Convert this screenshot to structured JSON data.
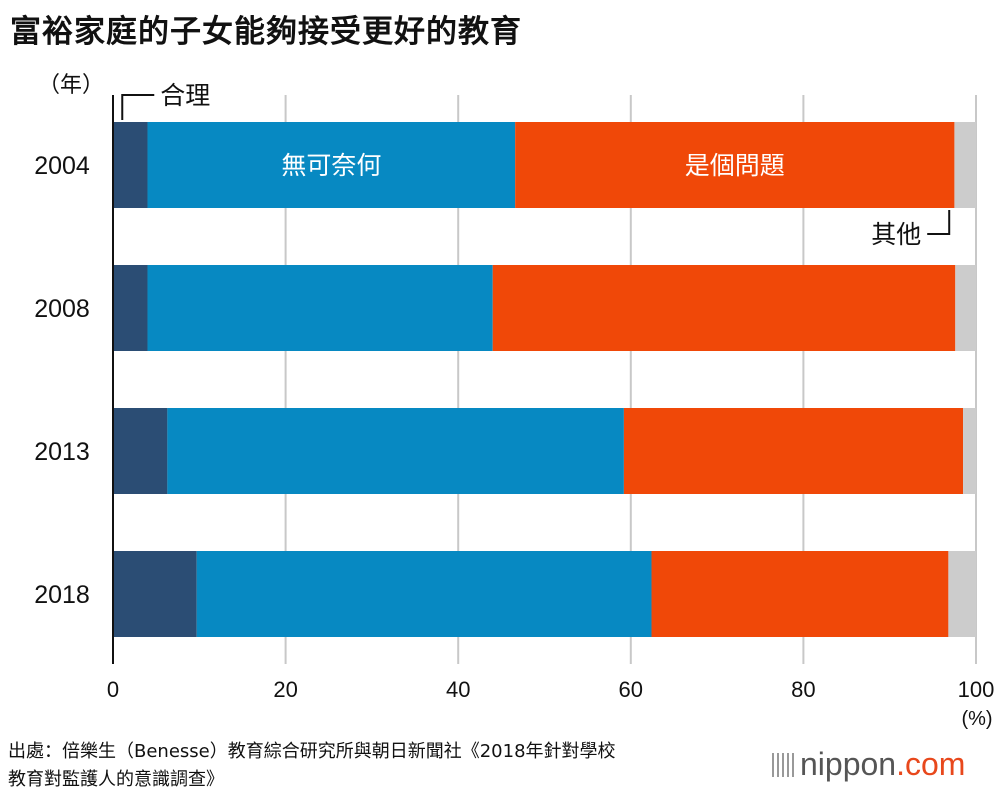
{
  "title": "富裕家庭的子女能夠接受更好的教育",
  "chart_data": {
    "type": "bar",
    "orientation": "horizontal",
    "stacked": true,
    "title": "富裕家庭的子女能夠接受更好的教育",
    "ylabel": "（年）",
    "xlabel": "(%)",
    "categories": [
      "2004",
      "2008",
      "2013",
      "2018"
    ],
    "series": [
      {
        "name": "合理",
        "color": "#2b4d74",
        "values": [
          4.0,
          4.0,
          6.3,
          9.7
        ]
      },
      {
        "name": "無可奈何",
        "color": "#0789c2",
        "values": [
          42.6,
          40.0,
          52.9,
          52.7
        ]
      },
      {
        "name": "是個問題",
        "color": "#f04808",
        "values": [
          50.9,
          53.6,
          39.3,
          34.4
        ]
      },
      {
        "name": "其他",
        "color": "#cccccc",
        "values": [
          2.5,
          2.4,
          1.5,
          3.2
        ]
      }
    ],
    "xlim": [
      0,
      100
    ],
    "xticks": [
      "0",
      "20",
      "40",
      "60",
      "80",
      "100"
    ],
    "grid": true
  },
  "source_lines": [
    "出處：倍樂生（Benesse）教育綜合研究所與朝日新聞社《2018年針對學校",
    "教育對監護人的意識調查》"
  ],
  "brand": {
    "name": "nippon",
    "suffix": ".com"
  }
}
